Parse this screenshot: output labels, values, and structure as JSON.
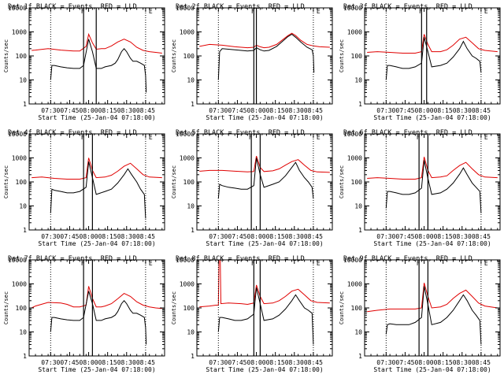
{
  "figure": {
    "ylabel": "Counts/sec",
    "xlabel": "Start Time (25-Jan-04 07:18:00)",
    "yticks": [
      "1",
      "10",
      "100",
      "1000",
      "10000"
    ],
    "xticks": [
      "07:30",
      "07:45",
      "08:00",
      "08:15",
      "08:30",
      "08:45"
    ],
    "marker_a": "F",
    "marker_b": "E",
    "colors": {
      "events": "#000000",
      "lld": "#e00000"
    }
  },
  "chart_data": [
    {
      "type": "line",
      "title": "Det 1f BLACK = Events, RED = LLD",
      "series": [
        {
          "color": "#e00000",
          "x": [
            -3,
            0,
            10,
            20,
            30,
            35,
            40,
            42,
            45,
            48,
            52,
            55,
            60,
            65,
            70,
            75,
            80,
            85,
            90,
            95,
            100
          ],
          "y": [
            170,
            175,
            200,
            175,
            160,
            160,
            250,
            800,
            350,
            190,
            200,
            200,
            260,
            380,
            500,
            380,
            230,
            170,
            150,
            140,
            130
          ]
        },
        {
          "color": "#000000",
          "x": [
            12,
            13,
            15,
            20,
            25,
            30,
            35,
            38,
            42,
            45,
            48,
            52,
            55,
            60,
            63,
            65,
            68,
            70,
            72,
            75,
            77,
            80,
            83,
            86,
            87,
            87.5
          ],
          "y": [
            10,
            40,
            40,
            35,
            32,
            30,
            30,
            40,
            500,
            150,
            30,
            30,
            35,
            40,
            50,
            70,
            150,
            200,
            150,
            80,
            60,
            60,
            50,
            40,
            15,
            3
          ]
        }
      ],
      "vlines_solid": [
        38,
        48
      ],
      "vlines_dotted": [
        12,
        87
      ]
    },
    {
      "type": "line",
      "title": "Det 2f BLACK = Events, RED = LLD",
      "series": [
        {
          "color": "#e00000",
          "x": [
            -3,
            5,
            15,
            25,
            35,
            40,
            42,
            45,
            48,
            52,
            58,
            63,
            67,
            70,
            73,
            77,
            82,
            87,
            92,
            100
          ],
          "y": [
            250,
            300,
            280,
            240,
            220,
            230,
            280,
            240,
            220,
            230,
            300,
            480,
            700,
            880,
            700,
            450,
            300,
            260,
            240,
            230
          ]
        },
        {
          "color": "#000000",
          "x": [
            12,
            13,
            15,
            25,
            35,
            40,
            42,
            45,
            48,
            52,
            58,
            63,
            67,
            70,
            73,
            77,
            82,
            86,
            87,
            87.5
          ],
          "y": [
            10,
            150,
            200,
            180,
            160,
            170,
            220,
            180,
            160,
            170,
            250,
            420,
            640,
            800,
            600,
            380,
            230,
            180,
            100,
            20
          ]
        }
      ],
      "vlines_solid": [
        40,
        42
      ],
      "vlines_dotted": [
        12,
        87
      ]
    },
    {
      "type": "line",
      "title": "Det 3f BLACK = Events, RED = LLD",
      "series": [
        {
          "color": "#e00000",
          "x": [
            -3,
            5,
            15,
            25,
            35,
            40,
            42,
            45,
            48,
            55,
            60,
            65,
            70,
            75,
            80,
            85,
            90,
            100
          ],
          "y": [
            140,
            150,
            140,
            130,
            130,
            150,
            800,
            300,
            150,
            150,
            180,
            280,
            500,
            600,
            350,
            200,
            170,
            150
          ]
        },
        {
          "color": "#000000",
          "x": [
            12,
            13,
            15,
            20,
            25,
            30,
            35,
            40,
            42,
            45,
            48,
            55,
            60,
            65,
            70,
            73,
            76,
            80,
            83,
            86,
            87
          ],
          "y": [
            10,
            40,
            40,
            35,
            30,
            30,
            35,
            50,
            600,
            150,
            35,
            40,
            50,
            90,
            200,
            400,
            200,
            100,
            80,
            60,
            20
          ]
        }
      ],
      "vlines_solid": [
        40,
        44
      ],
      "vlines_dotted": [
        12,
        87
      ]
    },
    {
      "type": "line",
      "title": "Det 4f BLACK = Events, RED = LLD",
      "series": [
        {
          "color": "#e00000",
          "x": [
            -3,
            5,
            15,
            25,
            35,
            40,
            42,
            45,
            48,
            55,
            60,
            65,
            70,
            75,
            80,
            85,
            90,
            100
          ],
          "y": [
            150,
            160,
            140,
            130,
            130,
            150,
            1000,
            300,
            150,
            160,
            190,
            280,
            450,
            600,
            350,
            200,
            160,
            150
          ]
        },
        {
          "color": "#000000",
          "x": [
            12,
            13,
            15,
            20,
            25,
            30,
            35,
            40,
            42,
            45,
            48,
            55,
            60,
            65,
            70,
            73,
            76,
            80,
            83,
            86,
            87
          ],
          "y": [
            5,
            50,
            45,
            40,
            35,
            35,
            40,
            60,
            700,
            150,
            30,
            40,
            50,
            90,
            200,
            350,
            200,
            100,
            50,
            30,
            3
          ]
        }
      ],
      "vlines_solid": [
        38,
        45
      ],
      "vlines_dotted": [
        12,
        87
      ]
    },
    {
      "type": "line",
      "title": "Det 5f BLACK = Events, RED = LLD",
      "series": [
        {
          "color": "#e00000",
          "x": [
            -3,
            5,
            15,
            25,
            35,
            40,
            42,
            45,
            48,
            55,
            60,
            65,
            70,
            75,
            80,
            85,
            90,
            100
          ],
          "y": [
            280,
            300,
            300,
            280,
            260,
            270,
            1200,
            400,
            270,
            290,
            350,
            500,
            700,
            850,
            500,
            300,
            260,
            250
          ]
        },
        {
          "color": "#000000",
          "x": [
            12,
            13,
            15,
            20,
            25,
            30,
            35,
            40,
            42,
            45,
            48,
            55,
            60,
            65,
            70,
            73,
            76,
            80,
            83,
            86,
            87
          ],
          "y": [
            20,
            80,
            70,
            60,
            55,
            50,
            50,
            70,
            1000,
            200,
            60,
            80,
            100,
            180,
            400,
            650,
            300,
            150,
            100,
            60,
            20
          ]
        }
      ],
      "vlines_solid": [
        38,
        45
      ],
      "vlines_dotted": [
        12,
        87
      ]
    },
    {
      "type": "line",
      "title": "Det 6f BLACK = Events, RED = LLD",
      "series": [
        {
          "color": "#e00000",
          "x": [
            -3,
            5,
            15,
            25,
            35,
            40,
            42,
            45,
            48,
            55,
            60,
            65,
            70,
            75,
            80,
            85,
            90,
            100
          ],
          "y": [
            140,
            150,
            140,
            130,
            130,
            150,
            1100,
            300,
            150,
            160,
            180,
            300,
            480,
            650,
            350,
            200,
            160,
            150
          ]
        },
        {
          "color": "#000000",
          "x": [
            12,
            13,
            15,
            20,
            25,
            30,
            35,
            40,
            42,
            45,
            48,
            55,
            60,
            65,
            70,
            73,
            76,
            80,
            83,
            86,
            87
          ],
          "y": [
            8,
            40,
            40,
            35,
            30,
            30,
            35,
            55,
            800,
            140,
            30,
            35,
            50,
            90,
            210,
            380,
            200,
            90,
            60,
            40,
            5
          ]
        }
      ],
      "vlines_solid": [
        38,
        45
      ],
      "vlines_dotted": [
        12,
        87
      ]
    },
    {
      "type": "line",
      "title": "Det 7f BLACK = Events, RED = LLD",
      "series": [
        {
          "color": "#e00000",
          "x": [
            -3,
            0,
            10,
            20,
            25,
            30,
            35,
            40,
            42,
            45,
            48,
            52,
            55,
            60,
            65,
            70,
            75,
            80,
            85,
            90,
            95,
            100
          ],
          "y": [
            100,
            120,
            170,
            160,
            140,
            110,
            110,
            130,
            800,
            250,
            110,
            110,
            120,
            150,
            240,
            400,
            300,
            180,
            130,
            110,
            100,
            95
          ]
        },
        {
          "color": "#000000",
          "x": [
            12,
            13,
            15,
            20,
            25,
            30,
            35,
            38,
            42,
            45,
            48,
            52,
            55,
            60,
            63,
            65,
            68,
            70,
            72,
            75,
            77,
            80,
            83,
            86,
            87,
            87.5
          ],
          "y": [
            10,
            40,
            40,
            35,
            32,
            30,
            30,
            40,
            500,
            150,
            30,
            30,
            35,
            40,
            50,
            70,
            150,
            200,
            150,
            80,
            60,
            60,
            50,
            40,
            15,
            3
          ]
        }
      ],
      "vlines_solid": [
        38,
        45
      ],
      "vlines_dotted": [
        12,
        87
      ]
    },
    {
      "type": "line",
      "title": "Det 8f BLACK = Events, RED = LLD",
      "series": [
        {
          "color": "#e00000",
          "x": [
            -3,
            5,
            10,
            12,
            12.5,
            13,
            13.5,
            14,
            20,
            30,
            35,
            40,
            42,
            45,
            48,
            55,
            60,
            65,
            70,
            75,
            80,
            85,
            90,
            100
          ],
          "y": [
            110,
            120,
            130,
            130,
            10000,
            10000,
            10000,
            150,
            160,
            150,
            140,
            160,
            900,
            300,
            150,
            160,
            200,
            300,
            500,
            600,
            350,
            200,
            170,
            160
          ]
        },
        {
          "color": "#000000",
          "x": [
            12,
            13,
            15,
            20,
            25,
            30,
            35,
            40,
            42,
            45,
            48,
            55,
            60,
            65,
            70,
            73,
            76,
            80,
            83,
            86,
            87
          ],
          "y": [
            10,
            40,
            40,
            35,
            30,
            30,
            35,
            55,
            700,
            150,
            30,
            35,
            50,
            90,
            200,
            350,
            200,
            100,
            80,
            60,
            3
          ]
        }
      ],
      "vlines_solid": [
        40,
        45
      ],
      "vlines_dotted": [
        12,
        87
      ]
    },
    {
      "type": "line",
      "title": "Det 9f BLACK = Events, RED = LLD",
      "series": [
        {
          "color": "#e00000",
          "x": [
            -3,
            5,
            15,
            25,
            35,
            40,
            42,
            45,
            48,
            55,
            60,
            65,
            70,
            75,
            80,
            85,
            90,
            100
          ],
          "y": [
            70,
            80,
            90,
            90,
            90,
            100,
            1100,
            300,
            100,
            110,
            140,
            250,
            400,
            550,
            300,
            160,
            120,
            100
          ]
        },
        {
          "color": "#000000",
          "x": [
            12,
            13,
            15,
            20,
            25,
            30,
            35,
            40,
            42,
            45,
            48,
            55,
            60,
            65,
            70,
            73,
            76,
            80,
            83,
            86,
            87
          ],
          "y": [
            8,
            20,
            22,
            20,
            20,
            20,
            25,
            40,
            800,
            140,
            20,
            25,
            40,
            80,
            200,
            350,
            200,
            80,
            50,
            30,
            3
          ]
        }
      ],
      "vlines_solid": [
        38,
        45
      ],
      "vlines_dotted": [
        12,
        87
      ]
    }
  ]
}
